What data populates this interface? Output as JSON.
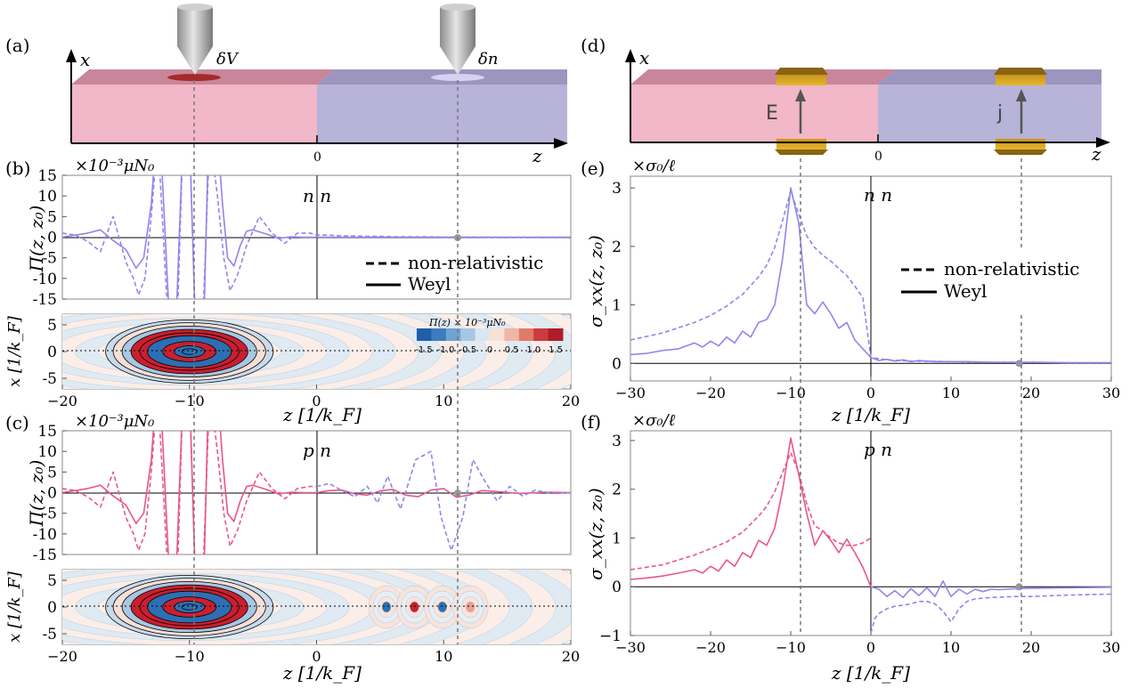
{
  "chart_data": [
    {
      "panel": "(a)",
      "type": "diagram",
      "axis_x": "x",
      "axis_z": "z",
      "zero_label": "0",
      "probe_labels": [
        "δV",
        "δn"
      ],
      "colors": {
        "n_region": "#f2b7c8",
        "p_region": "#b8b3d8",
        "tip": "#aaaaaa",
        "spot_left": "#b22222",
        "spot_right": "#d9d0f2"
      }
    },
    {
      "panel": "(b)",
      "type": "line",
      "scale_label": "×10⁻³μN₀",
      "ylabel": "Π(z, z₀)",
      "annotation": "n n",
      "xlim": [
        -20,
        20
      ],
      "ylim": [
        -15,
        15
      ],
      "yticks": [
        -15,
        -10,
        -5,
        0,
        5,
        10,
        15
      ],
      "legend": [
        {
          "name": "non-relativistic",
          "style": "dashed"
        },
        {
          "name": "Weyl",
          "style": "solid"
        }
      ],
      "series": [
        {
          "name": "Weyl",
          "color": "#8f86ea",
          "style": "solid",
          "x": [
            -20,
            -19,
            -18,
            -17,
            -16,
            -15,
            -14.2,
            -13.6,
            -13.0,
            -12.6,
            -12.3,
            -11.5,
            -11.1,
            -10.5,
            -10.0,
            -9.5,
            -8.9,
            -8.5,
            -7.8,
            -7.4,
            -7.0,
            -6.5,
            -6.0,
            -5.5,
            -5.0,
            -4.0,
            -3.0,
            -2.0,
            -1.0,
            0,
            1,
            2,
            4,
            6,
            8,
            10,
            12,
            14,
            16,
            18,
            20
          ],
          "y": [
            0,
            0.5,
            1,
            1.8,
            -0.8,
            -3,
            -7.5,
            -5,
            8,
            25,
            25,
            -25,
            -25,
            25,
            25,
            -25,
            -25,
            25,
            25,
            8,
            -5,
            -7,
            -2,
            1.5,
            1.8,
            0.8,
            -0.3,
            0.1,
            0,
            0,
            0,
            0,
            0,
            0,
            0,
            0,
            0,
            0,
            0,
            0,
            0
          ]
        },
        {
          "name": "non-relativistic",
          "color": "#8f86ea",
          "style": "dashed",
          "x": [
            -20,
            -19,
            -18,
            -17,
            -16,
            -15,
            -14.4,
            -14,
            -13.5,
            -13.0,
            -12.5,
            -11.6,
            -11,
            -10.5,
            -10,
            -9.5,
            -9,
            -8.4,
            -7.8,
            -7.3,
            -6.8,
            -6.2,
            -5.5,
            -4.5,
            -3.5,
            -2.5,
            -1.5,
            -0.5,
            0,
            1,
            2,
            3,
            4,
            5,
            6,
            8,
            10,
            12,
            14,
            16,
            18,
            20
          ],
          "y": [
            1,
            0.5,
            -1,
            -3.5,
            5,
            -6,
            -10,
            -14,
            -10,
            5,
            25,
            -25,
            -25,
            25,
            25,
            -25,
            -25,
            25,
            10,
            -5,
            -13,
            -9,
            -2,
            5,
            1,
            -1.5,
            1,
            1,
            0.5,
            0.5,
            0.3,
            0.3,
            0.2,
            0.2,
            0.1,
            0.1,
            0.05,
            0.05,
            0,
            0,
            0,
            0
          ]
        }
      ]
    },
    {
      "panel": "(b) map",
      "type": "heatmap",
      "xlabel": "z [1/k_F]",
      "ylabel": "x [1/k_F]",
      "xlim": [
        -20,
        20
      ],
      "ylim": [
        -7,
        7
      ],
      "xticks": [
        -20,
        -10,
        0,
        10,
        20
      ],
      "yticks": [
        -5,
        0,
        5
      ],
      "colorbar_title": "Π(z) × 10⁻³μN₀",
      "colorbar_ticks": [
        "-1.5",
        "-1.0",
        "-0.5",
        "0",
        "0.5",
        "1.0",
        "1.5"
      ]
    },
    {
      "panel": "(c)",
      "type": "line",
      "scale_label": "×10⁻³μN₀",
      "ylabel": "Π(z, z₀)",
      "annotation": "p n",
      "xlim": [
        -20,
        20
      ],
      "ylim": [
        -15,
        15
      ],
      "yticks": [
        -15,
        -10,
        -5,
        0,
        5,
        10,
        15
      ],
      "series": [
        {
          "name": "Weyl",
          "color": "#e8568a",
          "style": "solid",
          "x": [
            -20,
            -19,
            -18,
            -17,
            -16,
            -15,
            -14.2,
            -13.6,
            -13.0,
            -12.6,
            -12.3,
            -11.5,
            -11.1,
            -10.5,
            -10.0,
            -9.5,
            -8.9,
            -8.5,
            -7.8,
            -7.4,
            -7.0,
            -6.5,
            -6.0,
            -5.5,
            -5.0,
            -4.0,
            -3.0,
            -2.0,
            -1.0,
            0,
            1,
            2,
            3,
            4,
            5,
            6,
            7,
            8,
            9,
            10,
            11,
            12,
            13,
            14,
            16,
            18,
            20
          ],
          "y": [
            0,
            0.5,
            1,
            1.8,
            -0.8,
            -3,
            -7.5,
            -5,
            8,
            25,
            25,
            -25,
            -25,
            25,
            25,
            -25,
            -25,
            25,
            25,
            8,
            -5,
            -7,
            -2,
            1.5,
            1.8,
            0.8,
            -0.3,
            0.1,
            0,
            0,
            0.5,
            0.6,
            -0.3,
            -0.6,
            0.4,
            0.8,
            -0.6,
            -1.0,
            0.6,
            1.0,
            -1.1,
            -0.6,
            0.5,
            0.3,
            -0.2,
            0.1,
            0
          ]
        },
        {
          "name": "non-relativistic",
          "color": "#e8568a",
          "style": "dashed",
          "x": [
            -20,
            -19,
            -18,
            -17,
            -16,
            -15,
            -14.4,
            -14,
            -13.5,
            -13.0,
            -12.5,
            -11.6,
            -11,
            -10.5,
            -10,
            -9.5,
            -9,
            -8.4,
            -7.8,
            -7.3,
            -6.8,
            -6.2,
            -5.5,
            -4.5,
            -3.5,
            -2.5,
            -1.5,
            -0.5,
            0
          ],
          "y": [
            1,
            0.5,
            -1,
            -3.5,
            5,
            -6,
            -10,
            -14,
            -10,
            5,
            25,
            -25,
            -25,
            25,
            25,
            -25,
            -25,
            25,
            10,
            -5,
            -13,
            -9,
            -2,
            5,
            1,
            -1.5,
            1,
            1.5,
            1.5
          ]
        },
        {
          "name": "non-relativistic",
          "color": "#8f86ea",
          "style": "dashed",
          "x": [
            0,
            1,
            2,
            3,
            4,
            4.8,
            5.6,
            6.6,
            7.8,
            9.0,
            9.8,
            10.6,
            11.5,
            12.3,
            13.2,
            14.2,
            15.2,
            16.2,
            17.2,
            18.5,
            20
          ],
          "y": [
            1.5,
            2.2,
            0.5,
            -1,
            1.5,
            -2.5,
            4,
            -4,
            8,
            10,
            -6,
            -14,
            -6,
            8,
            3,
            -2,
            1.5,
            -0.8,
            0.6,
            -0.2,
            0
          ]
        }
      ]
    },
    {
      "panel": "(c) map",
      "type": "heatmap",
      "xlabel": "z [1/k_F]",
      "ylabel": "x [1/k_F]",
      "xlim": [
        -20,
        20
      ],
      "ylim": [
        -7,
        7
      ],
      "xticks": [
        -20,
        -10,
        0,
        10,
        20
      ],
      "yticks": [
        -5,
        0,
        5
      ]
    },
    {
      "panel": "(d)",
      "type": "diagram",
      "axis_x": "x",
      "axis_z": "z",
      "zero_label": "0",
      "arrow_labels": [
        "E",
        "j"
      ],
      "colors": {
        "n_region": "#f2b7c8",
        "p_region": "#b8b3d8",
        "contact": "#d4a017"
      }
    },
    {
      "panel": "(e)",
      "type": "line",
      "scale_label": "×σ₀/ℓ",
      "ylabel": "σ_xx(z, z₀)",
      "xlabel": "z [1/k_F]",
      "annotation": "n n",
      "xlim": [
        -30,
        30
      ],
      "ylim": [
        -0.3,
        3.2
      ],
      "xticks": [
        -30,
        -20,
        -10,
        0,
        10,
        20,
        30
      ],
      "yticks": [
        0,
        1,
        2,
        3
      ],
      "legend": [
        {
          "name": "non-relativistic",
          "style": "dashed"
        },
        {
          "name": "Weyl",
          "style": "solid"
        }
      ],
      "series": [
        {
          "name": "Weyl",
          "color": "#8f86ea",
          "style": "solid",
          "x": [
            -30,
            -28,
            -26,
            -24,
            -22,
            -21,
            -20,
            -19,
            -18,
            -17,
            -16,
            -15,
            -14,
            -13,
            -12,
            -11,
            -10,
            -9,
            -8,
            -7,
            -6,
            -5,
            -4,
            -3,
            -2,
            -1,
            0,
            1,
            2,
            3,
            4,
            5,
            6,
            8,
            10,
            12,
            15,
            20,
            25,
            30
          ],
          "y": [
            0.15,
            0.17,
            0.22,
            0.25,
            0.35,
            0.28,
            0.38,
            0.3,
            0.45,
            0.35,
            0.55,
            0.45,
            0.7,
            0.75,
            1.0,
            1.8,
            3.0,
            2.4,
            1.0,
            0.85,
            1.05,
            0.85,
            0.6,
            0.7,
            0.4,
            0.25,
            0.1,
            0.05,
            0.07,
            0.04,
            0.06,
            0.03,
            0.05,
            0.03,
            0.03,
            0.03,
            0.02,
            0.02,
            0.01,
            0.01
          ]
        },
        {
          "name": "non-relativistic",
          "color": "#8f86ea",
          "style": "dashed",
          "x": [
            -30,
            -26,
            -22,
            -20,
            -18,
            -16,
            -14,
            -13,
            -12,
            -11,
            -10,
            -9,
            -8,
            -7,
            -6,
            -5,
            -4,
            -3,
            -2,
            -1,
            0,
            2,
            5,
            10,
            15,
            20,
            25,
            30
          ],
          "y": [
            0.4,
            0.52,
            0.7,
            0.82,
            0.98,
            1.18,
            1.48,
            1.68,
            1.98,
            2.45,
            2.95,
            2.55,
            2.18,
            1.98,
            1.85,
            1.75,
            1.62,
            1.5,
            1.32,
            1.12,
            0.1,
            0.06,
            0.04,
            0.03,
            0.02,
            0.02,
            0.01,
            0.01
          ]
        }
      ]
    },
    {
      "panel": "(f)",
      "type": "line",
      "scale_label": "×σ₀/ℓ",
      "ylabel": "σ_xx(z, z₀)",
      "xlabel": "z [1/k_F]",
      "annotation": "p n",
      "xlim": [
        -30,
        30
      ],
      "ylim": [
        -1,
        3.2
      ],
      "xticks": [
        -30,
        -20,
        -10,
        0,
        10,
        20,
        30
      ],
      "yticks": [
        -1,
        0,
        1,
        2,
        3
      ],
      "series": [
        {
          "name": "Weyl",
          "color": "#e8568a",
          "style": "solid",
          "x": [
            -30,
            -28,
            -26,
            -24,
            -22,
            -21,
            -20,
            -19,
            -18,
            -17,
            -16,
            -15,
            -14,
            -13,
            -12,
            -11,
            -10,
            -9,
            -8,
            -7,
            -6,
            -5,
            -4,
            -3,
            -2,
            -1,
            0
          ],
          "y": [
            0.15,
            0.18,
            0.22,
            0.28,
            0.35,
            0.28,
            0.42,
            0.32,
            0.55,
            0.42,
            0.7,
            0.6,
            0.95,
            0.85,
            1.2,
            2.0,
            3.05,
            2.3,
            1.5,
            0.85,
            1.15,
            0.95,
            0.7,
            0.98,
            0.7,
            0.4,
            0.0
          ]
        },
        {
          "name": "Weyl",
          "color": "#8f86ea",
          "style": "solid",
          "x": [
            0,
            1,
            2,
            3,
            4,
            5,
            6,
            7,
            8,
            9,
            10,
            11,
            12,
            13,
            14,
            15,
            16,
            18,
            20,
            25,
            30
          ],
          "y": [
            0.0,
            -0.05,
            -0.2,
            -0.08,
            -0.22,
            -0.04,
            -0.18,
            -0.02,
            -0.2,
            0.12,
            -0.2,
            -0.05,
            -0.15,
            -0.05,
            -0.1,
            -0.05,
            -0.06,
            -0.04,
            -0.03,
            -0.02,
            -0.01
          ]
        },
        {
          "name": "non-relativistic",
          "color": "#e8568a",
          "style": "dashed",
          "x": [
            -30,
            -26,
            -22,
            -20,
            -18,
            -16,
            -14,
            -13,
            -12,
            -11,
            -10,
            -9,
            -8,
            -7,
            -6,
            -5,
            -4,
            -3,
            -2,
            -1,
            0
          ],
          "y": [
            0.35,
            0.45,
            0.65,
            0.78,
            0.92,
            1.12,
            1.45,
            1.65,
            1.95,
            2.35,
            2.75,
            2.35,
            1.7,
            1.25,
            1.15,
            1.0,
            0.9,
            0.85,
            0.85,
            0.9,
            1.0
          ]
        },
        {
          "name": "non-relativistic",
          "color": "#8f86ea",
          "style": "dashed",
          "x": [
            0,
            0.5,
            1,
            2,
            3,
            4,
            5,
            6,
            7,
            8,
            9,
            10,
            11,
            12,
            13,
            15,
            18,
            20,
            25,
            30
          ],
          "y": [
            -0.95,
            -0.65,
            -0.55,
            -0.45,
            -0.4,
            -0.38,
            -0.35,
            -0.3,
            -0.3,
            -0.35,
            -0.5,
            -0.72,
            -0.45,
            -0.3,
            -0.25,
            -0.22,
            -0.2,
            -0.2,
            -0.17,
            -0.15
          ]
        }
      ]
    }
  ],
  "panel_labels": [
    "(a)",
    "(b)",
    "(c)",
    "(d)",
    "(e)",
    "(f)"
  ],
  "units": {
    "scale_pi": "×10⁻³μN₀",
    "scale_sigma": "×σ₀/ℓ",
    "z_label": "z [1/k_F]",
    "x_label": "x [1/k_F]"
  }
}
